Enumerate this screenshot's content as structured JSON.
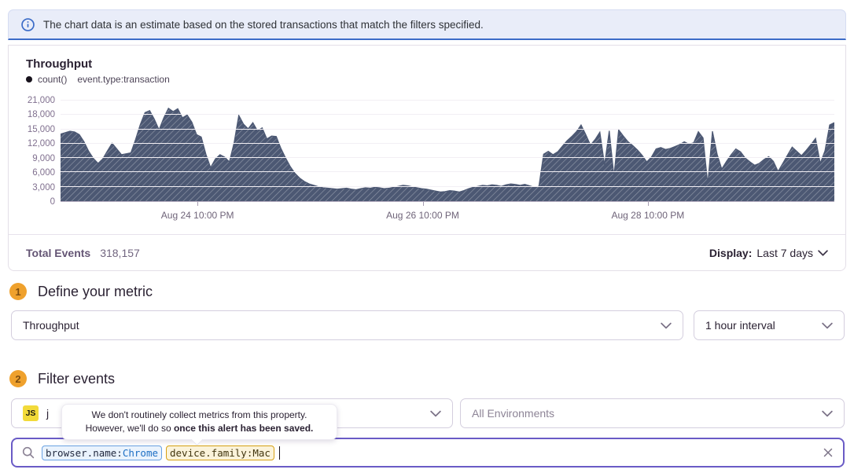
{
  "banner": {
    "text": "The chart data is an estimate based on the stored transactions that match the filters specified."
  },
  "chart_panel": {
    "title": "Throughput",
    "legend_metric": "count()",
    "legend_filter": "event.type:transaction",
    "footer": {
      "total_label": "Total Events",
      "total_value": "318,157",
      "display_label": "Display:",
      "display_value": "Last 7 days"
    }
  },
  "chart_data": {
    "type": "area",
    "title": "Throughput",
    "series_name": "count() event.type:transaction",
    "interval": "1 hour",
    "time_range": "Last 7 days",
    "ylim": [
      0,
      21000
    ],
    "y_ticks": [
      0,
      3000,
      6000,
      9000,
      12000,
      15000,
      18000,
      21000
    ],
    "y_tick_labels": [
      "0",
      "3,000",
      "6,000",
      "9,000",
      "12,000",
      "15,000",
      "18,000",
      "21,000"
    ],
    "x_ticks": [
      {
        "label": "Aug 24 10:00 PM",
        "pos": 0.177
      },
      {
        "label": "Aug 26 10:00 PM",
        "pos": 0.468
      },
      {
        "label": "Aug 28 10:00 PM",
        "pos": 0.759
      }
    ],
    "grid": true,
    "legend_position": "top-left",
    "fill_color": "#4c5873",
    "hatch_pattern": true,
    "values": [
      14000,
      14300,
      14600,
      14450,
      13900,
      12400,
      10400,
      8900,
      7900,
      8800,
      10500,
      12100,
      10900,
      9700,
      9900,
      10100,
      12900,
      16000,
      18500,
      18900,
      17100,
      14900,
      17400,
      19400,
      18700,
      19300,
      17400,
      18000,
      16500,
      13900,
      13400,
      9800,
      7000,
      8800,
      9700,
      9200,
      8200,
      12200,
      17900,
      16100,
      15100,
      16400,
      14700,
      15300,
      13000,
      13600,
      13500,
      11000,
      9000,
      7200,
      5800,
      4800,
      4100,
      3600,
      3300,
      3000,
      2800,
      2700,
      2600,
      2500,
      2600,
      2700,
      2500,
      2400,
      2600,
      2800,
      2700,
      2900,
      2800,
      2600,
      2700,
      2900,
      3100,
      3300,
      3200,
      3000,
      2800,
      2600,
      2500,
      2300,
      2100,
      1900,
      2000,
      2200,
      2100,
      1900,
      2200,
      2600,
      2900,
      3100,
      3300,
      3200,
      3400,
      3300,
      3100,
      3400,
      3600,
      3500,
      3300,
      3500,
      3200,
      2900,
      3100,
      9800,
      10400,
      9700,
      10300,
      11500,
      12600,
      13500,
      14500,
      15900,
      13900,
      11700,
      12900,
      14400,
      7600,
      14700,
      5200,
      14900,
      13600,
      12400,
      11600,
      10700,
      9600,
      8200,
      9200,
      10900,
      11200,
      10800,
      11000,
      11400,
      11800,
      12400,
      11900,
      12200,
      14500,
      13200,
      3600,
      14600,
      9800,
      6700,
      8300,
      9700,
      10900,
      10300,
      9000,
      8200,
      7500,
      7900,
      8700,
      9300,
      8300,
      6200,
      7900,
      9600,
      11300,
      10400,
      9500,
      10600,
      11800,
      13100,
      7900,
      10500,
      15900,
      16400
    ]
  },
  "sections": {
    "metric": {
      "step": "1",
      "title": "Define your metric",
      "metric_select_value": "Throughput",
      "interval_select_value": "1 hour interval"
    },
    "filter": {
      "step": "2",
      "title": "Filter events",
      "project_badge": "JS",
      "project_label_visible": "j",
      "environment_select_value": "All Environments"
    }
  },
  "tooltip": {
    "line1": "We don't routinely collect metrics from this property.",
    "line2_normal": "However, we'll do so ",
    "line2_bold": "once this alert has been saved."
  },
  "search": {
    "tokens": [
      {
        "key": "browser.name:",
        "value": "Chrome",
        "style": "blue"
      },
      {
        "key": "device.family:",
        "value": "Mac",
        "style": "yellow"
      }
    ]
  },
  "colors": {
    "accent_purple": "#6a5bc6",
    "banner_blue": "#3c6cc8",
    "step_amber": "#efa12d",
    "area_fill": "#4c5873",
    "token_blue_border": "#6aa2e2",
    "token_yellow_border": "#d7a113"
  }
}
